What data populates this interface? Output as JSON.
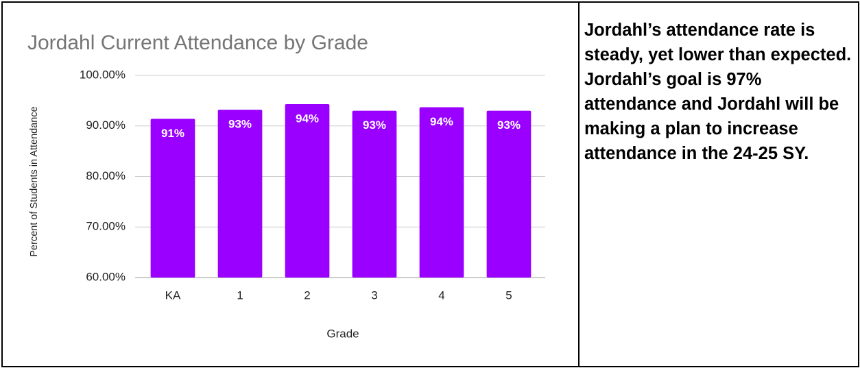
{
  "chart_data": {
    "type": "bar",
    "title": "Jordahl Current Attendance by Grade",
    "x_label": "Grade",
    "y_label": "Percent of Students in Attendance",
    "categories": [
      "KA",
      "1",
      "2",
      "3",
      "4",
      "5"
    ],
    "values": [
      91.4,
      93.2,
      94.3,
      93.0,
      93.7,
      93.0
    ],
    "value_labels": [
      "91%",
      "93%",
      "94%",
      "93%",
      "94%",
      "93%"
    ],
    "color": "#9900ff",
    "ylim": [
      60,
      100
    ],
    "yticks": [
      {
        "value": 60,
        "label": "60.00%"
      },
      {
        "value": 70,
        "label": "70.00%"
      },
      {
        "value": 80,
        "label": "80.00%"
      },
      {
        "value": 90,
        "label": "90.00%"
      },
      {
        "value": 100,
        "label": "100.00%"
      }
    ],
    "grid": true
  },
  "notes": [
    "Jordahl’s attendance rate is steady, yet lower than expected.",
    "Jordahl’s goal is 97% attendance and Jordahl will be making a plan to increase attendance in the 24-25 SY."
  ]
}
